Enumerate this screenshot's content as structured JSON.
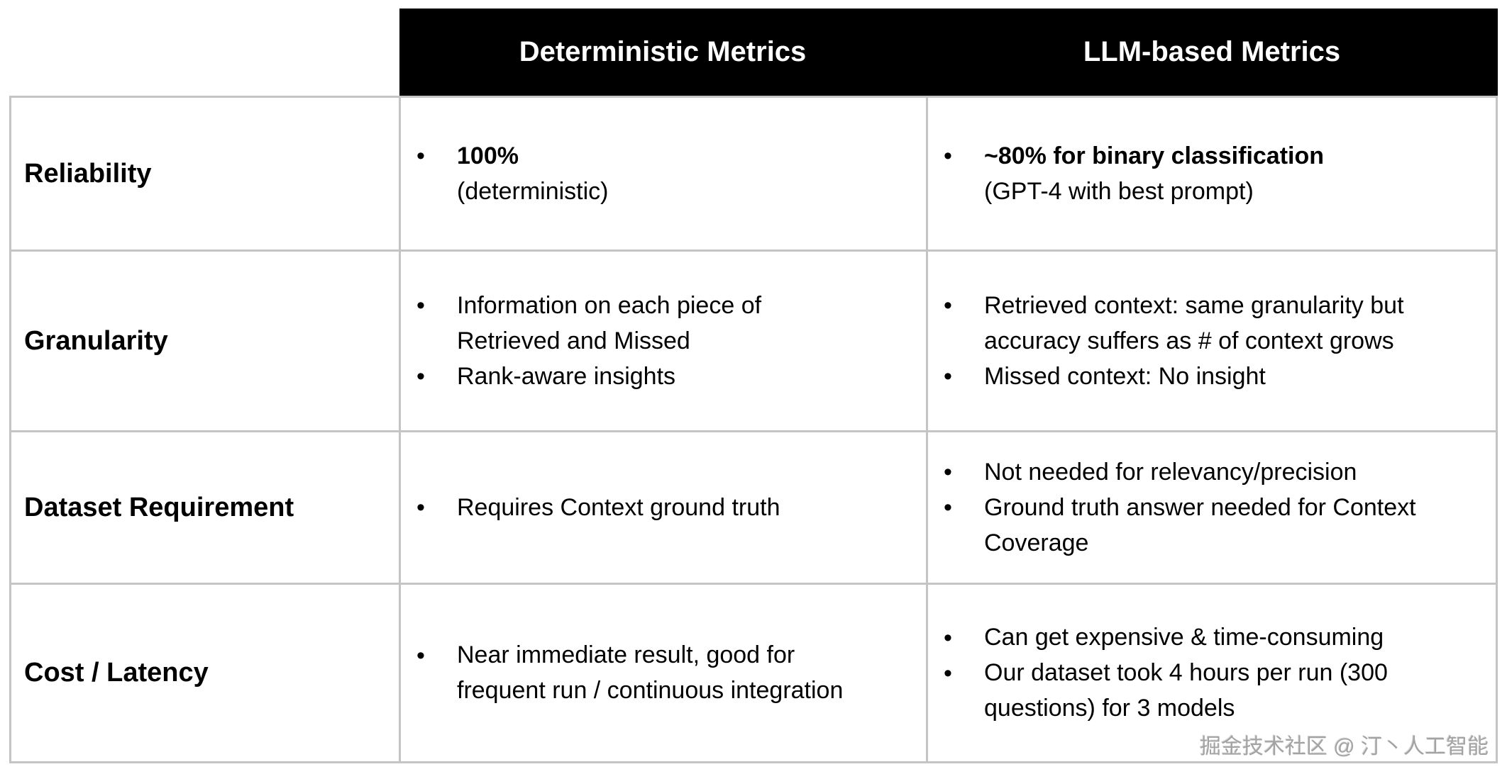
{
  "header": {
    "deterministic": "Deterministic Metrics",
    "llm": "LLM-based Metrics"
  },
  "rows": [
    {
      "label": "Reliability",
      "deterministic_bullets": [
        {
          "lines": [
            {
              "text": "100%",
              "bold": true
            },
            {
              "text": "(deterministic)",
              "bold": false
            }
          ]
        }
      ],
      "llm_bullets": [
        {
          "lines": [
            {
              "text": "~80% for binary classification",
              "bold": true
            },
            {
              "text": "(GPT-4 with best prompt)",
              "bold": false
            }
          ]
        }
      ]
    },
    {
      "label": "Granularity",
      "deterministic_bullets": [
        {
          "lines": [
            {
              "text": "Information on each piece of",
              "bold": false
            },
            {
              "text": "Retrieved and Missed",
              "bold": false
            }
          ]
        },
        {
          "lines": [
            {
              "text": "Rank-aware insights",
              "bold": false
            }
          ]
        }
      ],
      "llm_bullets": [
        {
          "lines": [
            {
              "text": "Retrieved context: same granularity but",
              "bold": false
            },
            {
              "text": "accuracy suffers as # of context grows",
              "bold": false
            }
          ]
        },
        {
          "lines": [
            {
              "text": "Missed context: No insight",
              "bold": false
            }
          ]
        }
      ]
    },
    {
      "label": "Dataset Requirement",
      "deterministic_bullets": [
        {
          "lines": [
            {
              "text": "Requires Context ground truth",
              "bold": false
            }
          ]
        }
      ],
      "llm_bullets": [
        {
          "lines": [
            {
              "text": "Not needed for relevancy/precision",
              "bold": false
            }
          ]
        },
        {
          "lines": [
            {
              "text": "Ground truth answer needed for Context",
              "bold": false
            },
            {
              "text": "Coverage",
              "bold": false
            }
          ]
        }
      ]
    },
    {
      "label": "Cost / Latency",
      "deterministic_bullets": [
        {
          "lines": [
            {
              "text": "Near immediate result, good for",
              "bold": false
            },
            {
              "text": "frequent run / continuous integration",
              "bold": false
            }
          ]
        }
      ],
      "llm_bullets": [
        {
          "lines": [
            {
              "text": "Can get expensive & time-consuming",
              "bold": false
            }
          ]
        },
        {
          "lines": [
            {
              "text": "Our dataset took 4 hours per run (300",
              "bold": false
            },
            {
              "text": "questions) for 3 models",
              "bold": false
            }
          ]
        }
      ]
    }
  ],
  "bullet_glyph": "•",
  "watermark": "掘金技术社区 @ 汀丶人工智能",
  "colors": {
    "header_bg": "#000000",
    "header_text": "#ffffff",
    "border": "#c4c4c4",
    "text": "#000000",
    "watermark": "#a3a3a3"
  }
}
